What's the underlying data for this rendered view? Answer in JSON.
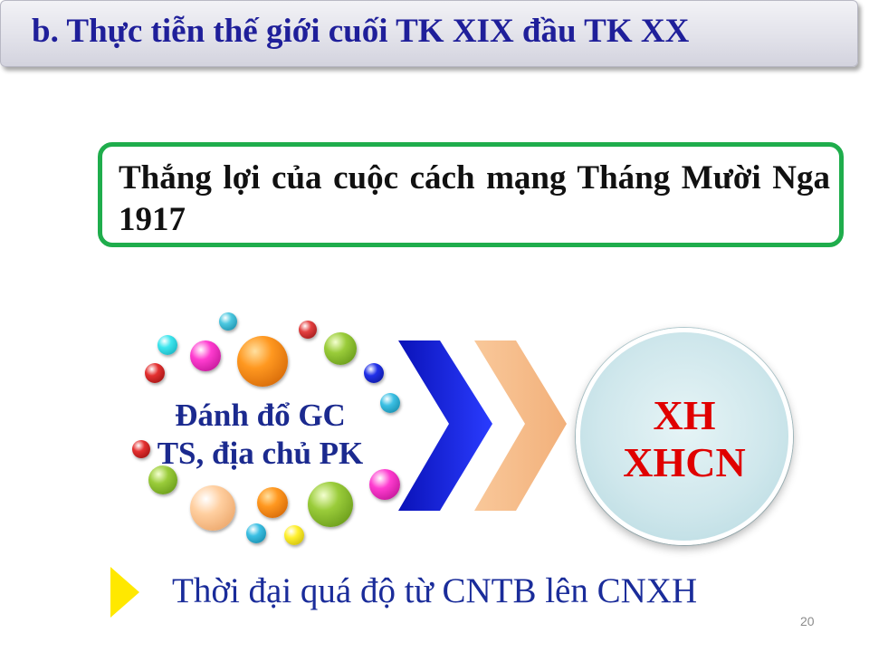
{
  "slide": {
    "title": "b. Thực tiễn thế giới cuối TK XIX đầu TK XX",
    "box_text": "Thắng lợi của cuộc cách mạng Tháng Mười Nga 1917",
    "center_line1": "Đánh đổ GC",
    "center_line2": "TS, địa chủ PK",
    "circle_line1": "XH",
    "circle_line2": "XHCN",
    "bottom_text": "Thời đại quá độ từ CNTB lên CNXH",
    "page_number": "20"
  },
  "colors": {
    "title": "#1f1f9a",
    "box_border": "#1fad4c",
    "circle_text": "#e00000",
    "chevron_primary": "#1422d8",
    "chevron_secondary": "#f6c08f",
    "arrow_icon": "#ffe800"
  }
}
